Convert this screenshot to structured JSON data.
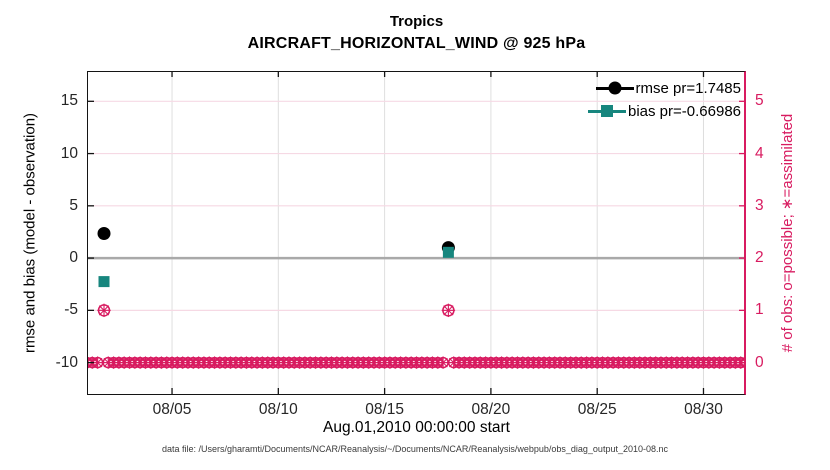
{
  "colors": {
    "rmse": "#000000",
    "bias": "#17867e",
    "obs": "#d81b60",
    "zero_line": "#a9a9a9",
    "grid_vertical": "#dedede",
    "grid_horizontal": "#f6d9e4",
    "axis_box": "#141414"
  },
  "footer": {
    "data_file": "data file: /Users/gharamti/Documents/NCAR/Reanalysis/~/Documents/NCAR/Reanalysis/webpub/obs_diag_output_2010-08.nc"
  },
  "chart_data": {
    "type": "scatter",
    "title": "Tropics",
    "subtitle": "AIRCRAFT_HORIZONTAL_WIND @ 925 hPa",
    "xlabel": "Aug.01,2010 00:00:00 start",
    "ylabel_left": "rmse and bias (model - observation)",
    "ylabel_right": "# of obs: o=possible; ∗=assimilated",
    "x_axis": {
      "start_day": 0,
      "end_day": 31,
      "start_label": "08/01 00:00",
      "tick_days": [
        4,
        9,
        14,
        19,
        24,
        29
      ],
      "tick_labels": [
        "08/05",
        "08/10",
        "08/15",
        "08/20",
        "08/25",
        "08/30"
      ]
    },
    "y_left": {
      "min": -13.1,
      "max": 17.9,
      "ticks": [
        15,
        10,
        5,
        0,
        -5,
        -10
      ]
    },
    "y_right": {
      "min": -0.62,
      "max": 5.58,
      "ticks": [
        5,
        4,
        3,
        2,
        1,
        0
      ],
      "scale_note": "right = (left + 10) / 5"
    },
    "grid": "on",
    "legend_position": "top-right-inside",
    "series": [
      {
        "name": "rmse pr=1.7485",
        "marker": "circle",
        "color": "#000000",
        "points": [
          {
            "day": 0.8,
            "value": 2.35
          },
          {
            "day": 17.0,
            "value": 1.0
          }
        ]
      },
      {
        "name": "bias pr=-0.66986",
        "marker": "square",
        "color": "#17867e",
        "points": [
          {
            "day": 0.8,
            "value": -2.25
          },
          {
            "day": 17.0,
            "value": 0.55
          }
        ]
      }
    ],
    "obs_counts": {
      "axis": "right",
      "marker": "circle-asterisk",
      "color": "#d81b60",
      "nonzero": [
        {
          "day": 0.8,
          "count": 1
        },
        {
          "day": 17.0,
          "count": 1
        }
      ],
      "zero_band": {
        "start_day": 0,
        "end_day": 31,
        "step_days": 0.25,
        "count": 0,
        "gap_days": [
          0.8,
          17.0
        ]
      }
    },
    "zero_reference_line": 0
  }
}
